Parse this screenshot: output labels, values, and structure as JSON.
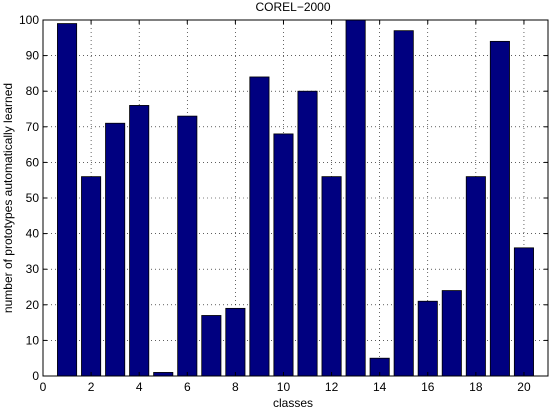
{
  "chart_data": {
    "type": "bar",
    "title": "COREL−2000",
    "xlabel": "classes",
    "ylabel": "number of prototypes automatically learned",
    "categories": [
      1,
      2,
      3,
      4,
      5,
      6,
      7,
      8,
      9,
      10,
      11,
      12,
      13,
      14,
      15,
      16,
      17,
      18,
      19,
      20
    ],
    "values": [
      99,
      56,
      71,
      76,
      1,
      73,
      17,
      19,
      84,
      68,
      80,
      56,
      100,
      5,
      97,
      21,
      24,
      56,
      94,
      36
    ],
    "xlim": [
      0,
      21
    ],
    "ylim": [
      0,
      100
    ],
    "xticks": [
      0,
      2,
      4,
      6,
      8,
      10,
      12,
      14,
      16,
      18,
      20
    ],
    "yticks": [
      0,
      10,
      20,
      30,
      40,
      50,
      60,
      70,
      80,
      90,
      100
    ],
    "grid": true,
    "bar_color": "#000080"
  }
}
